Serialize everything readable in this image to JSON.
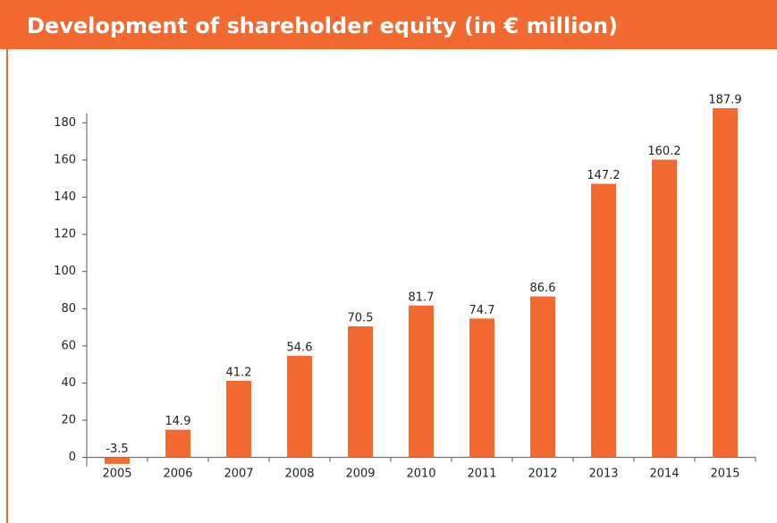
{
  "chart_data": {
    "type": "bar",
    "title": "Development of shareholder equity (in € million)",
    "categories": [
      "2005",
      "2006",
      "2007",
      "2008",
      "2009",
      "2010",
      "2011",
      "2012",
      "2013",
      "2014",
      "2015"
    ],
    "values": [
      -3.5,
      14.9,
      41.2,
      54.6,
      70.5,
      81.7,
      74.7,
      86.6,
      147.2,
      160.2,
      187.9
    ],
    "color": "#f26a30",
    "ylim": [
      -5,
      185
    ],
    "yticks": [
      0,
      20,
      40,
      60,
      80,
      100,
      120,
      140,
      160,
      180
    ],
    "grid": false
  }
}
